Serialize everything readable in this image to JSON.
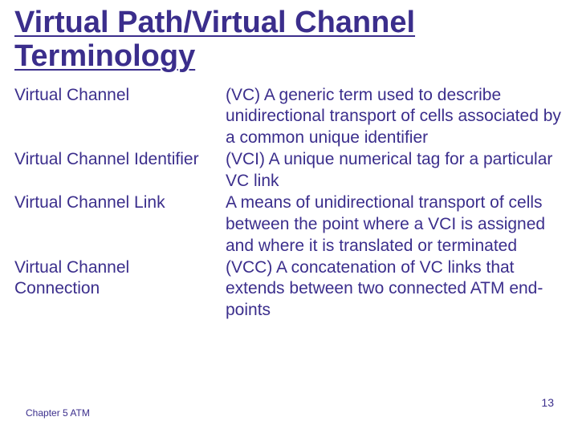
{
  "title_color": "#3b2e8c",
  "text_color": "#3b2e8c",
  "background_color": "#ffffff",
  "font_family": "Comic Sans MS",
  "title": "Virtual Path/Virtual Channel Terminology",
  "terms": [
    {
      "term": "Virtual Channel",
      "definition": "(VC) A generic term used to describe unidirectional  transport of cells associated by a common unique identifier"
    },
    {
      "term": "Virtual Channel Identifier",
      "definition": "(VCI) A unique numerical tag for a particular VC link"
    },
    {
      "term": "Virtual Channel Link",
      "definition": "A means of unidirectional transport of cells between the point where a VCI is assigned and where it is translated or terminated"
    },
    {
      "term": "Virtual Channel Connection",
      "definition": "(VCC) A concatenation of VC links that extends between two connected ATM end-points"
    }
  ],
  "footer_left": "Chapter 5 ATM",
  "page_number": "13"
}
